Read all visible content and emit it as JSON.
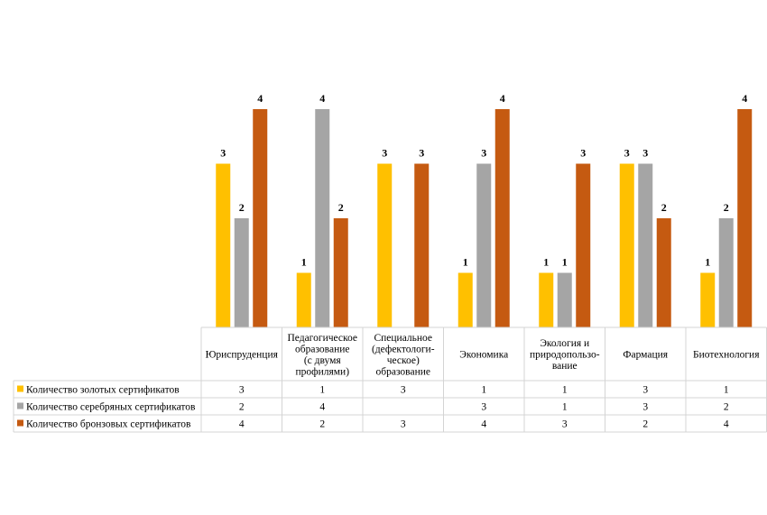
{
  "chart_data": {
    "type": "bar",
    "categories": [
      [
        "Юриспруденция"
      ],
      [
        "Педагогическое",
        "образование",
        "(с двумя",
        "профилями)"
      ],
      [
        "Специальное",
        "(дефектологи-",
        "ческое)",
        "образование"
      ],
      [
        "Экономика"
      ],
      [
        "Экология и",
        "природопользо-",
        "вание"
      ],
      [
        "Фармация"
      ],
      [
        "Биотехнология"
      ]
    ],
    "series": [
      {
        "name": "Количество золотых сертификатов",
        "color": "#FFC000",
        "values": [
          3,
          1,
          3,
          1,
          1,
          3,
          1
        ]
      },
      {
        "name": "Количество серебряных сертификатов",
        "color": "#A5A5A5",
        "values": [
          2,
          4,
          null,
          3,
          1,
          3,
          2
        ]
      },
      {
        "name": "Количество бронзовых сертификатов",
        "color": "#C55A11",
        "values": [
          4,
          2,
          3,
          4,
          3,
          2,
          4
        ]
      }
    ],
    "ylim": [
      0,
      4
    ],
    "data_labels": true,
    "data_table": true,
    "legend": "in data table",
    "grid": false
  }
}
